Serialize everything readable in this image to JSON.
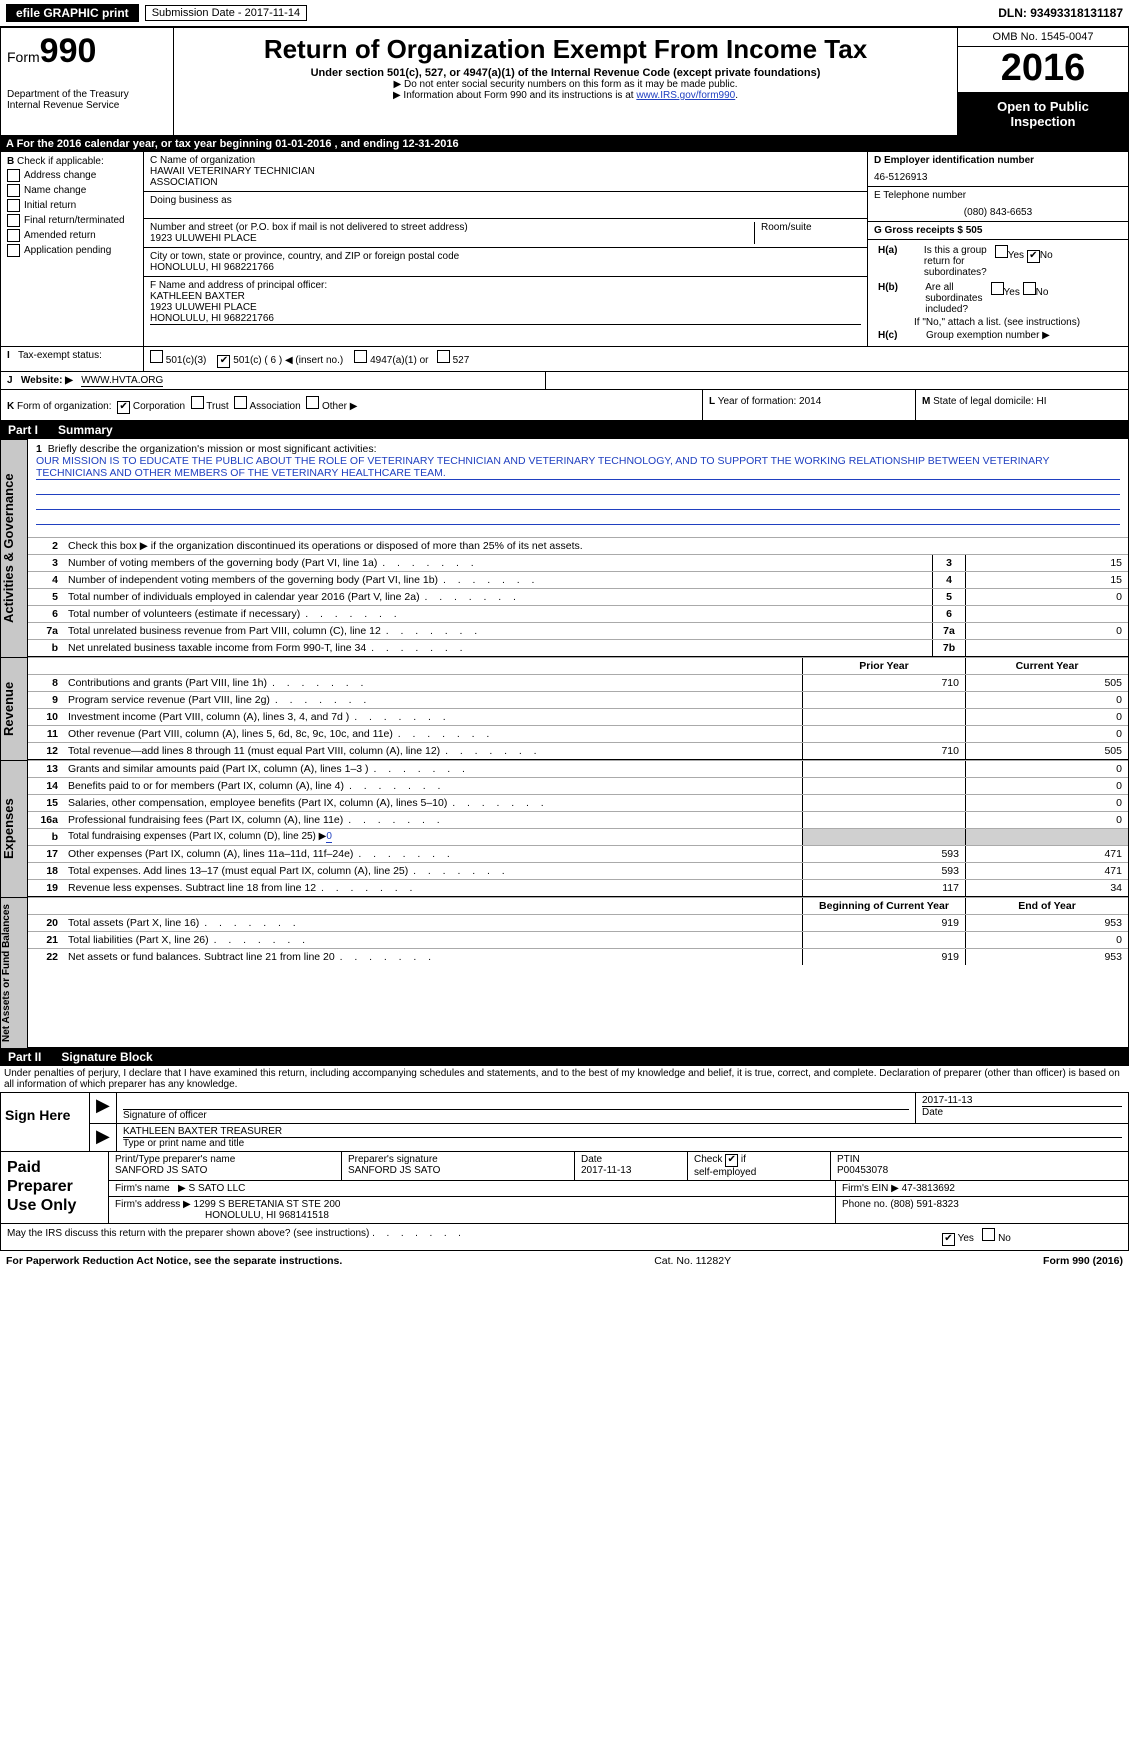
{
  "topbar": {
    "efile": "efile GRAPHIC print",
    "submission": "Submission Date - 2017-11-14",
    "dln": "DLN: 93493318131187"
  },
  "header": {
    "form_label": "Form",
    "form_num": "990",
    "dept": "Department of the Treasury",
    "irs": "Internal Revenue Service",
    "title": "Return of Organization Exempt From Income Tax",
    "subtitle": "Under section 501(c), 527, or 4947(a)(1) of the Internal Revenue Code (except private foundations)",
    "note1": "Do not enter social security numbers on this form as it may be made public.",
    "note2_pre": "Information about Form 990 and its instructions is at ",
    "note2_link": "www.IRS.gov/form990",
    "omb": "OMB No. 1545-0047",
    "year": "2016",
    "open1": "Open to Public",
    "open2": "Inspection"
  },
  "rowA": "A   For the 2016 calendar year, or tax year beginning 01-01-2016       , and ending 12-31-2016",
  "B": {
    "label": "B",
    "check_if": "Check if applicable:",
    "addr": "Address change",
    "name": "Name change",
    "initial": "Initial return",
    "final": "Final return/terminated",
    "amended": "Amended return",
    "app": "Application pending"
  },
  "C": {
    "name_label": "C Name of organization",
    "name1": "HAWAII VETERINARY TECHNICIAN",
    "name2": "ASSOCIATION",
    "dba": "Doing business as",
    "street_label": "Number and street (or P.O. box if mail is not delivered to street address)",
    "street": "1923 ULUWEHI PLACE",
    "room": "Room/suite",
    "city_label": "City or town, state or province, country, and ZIP or foreign postal code",
    "city": "HONOLULU, HI   968221766",
    "F_label": "F  Name and address of principal officer:",
    "F_name": "KATHLEEN BAXTER",
    "F_street": "1923 ULUWEHI PLACE",
    "F_city": "HONOLULU, HI   968221766"
  },
  "D": {
    "label": "D Employer identification number",
    "ein": "46-5126913",
    "E_label": "E Telephone number",
    "phone": "(080) 843-6653",
    "G": "G Gross receipts $ 505"
  },
  "H": {
    "a_label": "H(a)",
    "a_q": "Is this a group return for subordinates?",
    "b_label": "H(b)",
    "b_q": "Are all subordinates included?",
    "b_note": "If \"No,\" attach a list. (see instructions)",
    "c_label": "H(c)",
    "c_q": "Group exemption number ▶",
    "yes": "Yes",
    "no": "No"
  },
  "I": {
    "label": "I",
    "text": "Tax-exempt status:",
    "o1": "501(c)(3)",
    "o2": "501(c) ( 6 ) ◀ (insert no.)",
    "o3": "4947(a)(1) or",
    "o4": "527"
  },
  "J": {
    "label": "J",
    "text": "Website: ▶",
    "val": "WWW.HVTA.ORG"
  },
  "K": {
    "label": "K",
    "text": "Form of organization:",
    "corp": "Corporation",
    "trust": "Trust",
    "assoc": "Association",
    "other": "Other ▶"
  },
  "L": {
    "label": "L",
    "text": "Year of formation: 2014"
  },
  "M": {
    "label": "M",
    "text": "State of legal domicile: HI"
  },
  "part1": {
    "header_pt": "Part I",
    "header_txt": "Summary",
    "tab1": "Activities & Governance",
    "tab2": "Revenue",
    "tab3": "Expenses",
    "tab4": "Net Assets or Fund Balances",
    "l1_label": "1",
    "l1": "Briefly describe the organization's mission or most significant activities:",
    "l1_text": "OUR MISSION IS TO EDUCATE THE PUBLIC ABOUT THE ROLE OF VETERINARY TECHNICIAN AND VETERINARY TECHNOLOGY, AND TO SUPPORT THE WORKING RELATIONSHIP BETWEEN VETERINARY TECHNICIANS AND OTHER MEMBERS OF THE VETERINARY HEALTHCARE TEAM.",
    "l2": "Check this box ▶        if the organization discontinued its operations or disposed of more than 25% of its net assets.",
    "rows_single": [
      {
        "n": "3",
        "t": "Number of voting members of the governing body (Part VI, line 1a)",
        "b": "3",
        "v": "15"
      },
      {
        "n": "4",
        "t": "Number of independent voting members of the governing body (Part VI, line 1b)",
        "b": "4",
        "v": "15"
      },
      {
        "n": "5",
        "t": "Total number of individuals employed in calendar year 2016 (Part V, line 2a)",
        "b": "5",
        "v": "0"
      },
      {
        "n": "6",
        "t": "Total number of volunteers (estimate if necessary)",
        "b": "6",
        "v": ""
      },
      {
        "n": "7a",
        "t": "Total unrelated business revenue from Part VIII, column (C), line 12",
        "b": "7a",
        "v": "0"
      },
      {
        "n": "b",
        "t": "Net unrelated business taxable income from Form 990-T, line 34",
        "b": "7b",
        "v": ""
      }
    ],
    "hdr_prior": "Prior Year",
    "hdr_curr": "Current Year",
    "rows_rev": [
      {
        "n": "8",
        "t": "Contributions and grants (Part VIII, line 1h)",
        "p": "710",
        "c": "505"
      },
      {
        "n": "9",
        "t": "Program service revenue (Part VIII, line 2g)",
        "p": "",
        "c": "0"
      },
      {
        "n": "10",
        "t": "Investment income (Part VIII, column (A), lines 3, 4, and 7d )",
        "p": "",
        "c": "0"
      },
      {
        "n": "11",
        "t": "Other revenue (Part VIII, column (A), lines 5, 6d, 8c, 9c, 10c, and 11e)",
        "p": "",
        "c": "0"
      },
      {
        "n": "12",
        "t": "Total revenue—add lines 8 through 11 (must equal Part VIII, column (A), line 12)",
        "p": "710",
        "c": "505"
      }
    ],
    "rows_exp": [
      {
        "n": "13",
        "t": "Grants and similar amounts paid (Part IX, column (A), lines 1–3 )",
        "p": "",
        "c": "0"
      },
      {
        "n": "14",
        "t": "Benefits paid to or for members (Part IX, column (A), line 4)",
        "p": "",
        "c": "0"
      },
      {
        "n": "15",
        "t": "Salaries, other compensation, employee benefits (Part IX, column (A), lines 5–10)",
        "p": "",
        "c": "0"
      },
      {
        "n": "16a",
        "t": "Professional fundraising fees (Part IX, column (A), line 11e)",
        "p": "",
        "c": "0"
      }
    ],
    "l16b_n": "b",
    "l16b": "Total fundraising expenses (Part IX, column (D), line 25) ▶",
    "l16b_val": "0",
    "rows_exp2": [
      {
        "n": "17",
        "t": "Other expenses (Part IX, column (A), lines 11a–11d, 11f–24e)",
        "p": "593",
        "c": "471"
      },
      {
        "n": "18",
        "t": "Total expenses. Add lines 13–17 (must equal Part IX, column (A), line 25)",
        "p": "593",
        "c": "471"
      },
      {
        "n": "19",
        "t": "Revenue less expenses. Subtract line 18 from line 12",
        "p": "117",
        "c": "34"
      }
    ],
    "hdr_beg": "Beginning of Current Year",
    "hdr_end": "End of Year",
    "rows_net": [
      {
        "n": "20",
        "t": "Total assets (Part X, line 16)",
        "p": "919",
        "c": "953"
      },
      {
        "n": "21",
        "t": "Total liabilities (Part X, line 26)",
        "p": "",
        "c": "0"
      },
      {
        "n": "22",
        "t": "Net assets or fund balances. Subtract line 21 from line 20",
        "p": "919",
        "c": "953"
      }
    ]
  },
  "part2": {
    "header_pt": "Part II",
    "header_txt": "Signature Block",
    "declare": "Under penalties of perjury, I declare that I have examined this return, including accompanying schedules and statements, and to the best of my knowledge and belief, it is true, correct, and complete. Declaration of preparer (other than officer) is based on all information of which preparer has any knowledge.",
    "sign_here": "Sign Here",
    "sig_officer": "Signature of officer",
    "sig_date": "2017-11-13",
    "sig_date_lbl": "Date",
    "officer_name": "KATHLEEN BAXTER TREASURER",
    "type_name": "Type or print name and title",
    "paid": "Paid Preparer Use Only",
    "prep_name_lbl": "Print/Type preparer's name",
    "prep_name": "SANFORD JS SATO",
    "prep_sig_lbl": "Preparer's signature",
    "prep_sig": "SANFORD JS SATO",
    "prep_date_lbl": "Date",
    "prep_date": "2017-11-13",
    "self_emp": "self-employed",
    "check_if": "Check",
    "if_txt": "if",
    "ptin_lbl": "PTIN",
    "ptin": "P00453078",
    "firm_name_lbl": "Firm's name",
    "firm_name": "S SATO LLC",
    "firm_ein_lbl": "Firm's EIN ▶",
    "firm_ein": "47-3813692",
    "firm_addr_lbl": "Firm's address ▶",
    "firm_addr1": "1299 S BERETANIA ST STE 200",
    "firm_addr2": "HONOLULU, HI   968141518",
    "phone_lbl": "Phone no.",
    "phone": "(808) 591-8323",
    "discuss": "May the IRS discuss this return with the preparer shown above? (see instructions)",
    "yes": "Yes",
    "no": "No"
  },
  "footer": {
    "left": "For Paperwork Reduction Act Notice, see the separate instructions.",
    "mid": "Cat. No. 11282Y",
    "right": "Form 990 (2016)"
  }
}
